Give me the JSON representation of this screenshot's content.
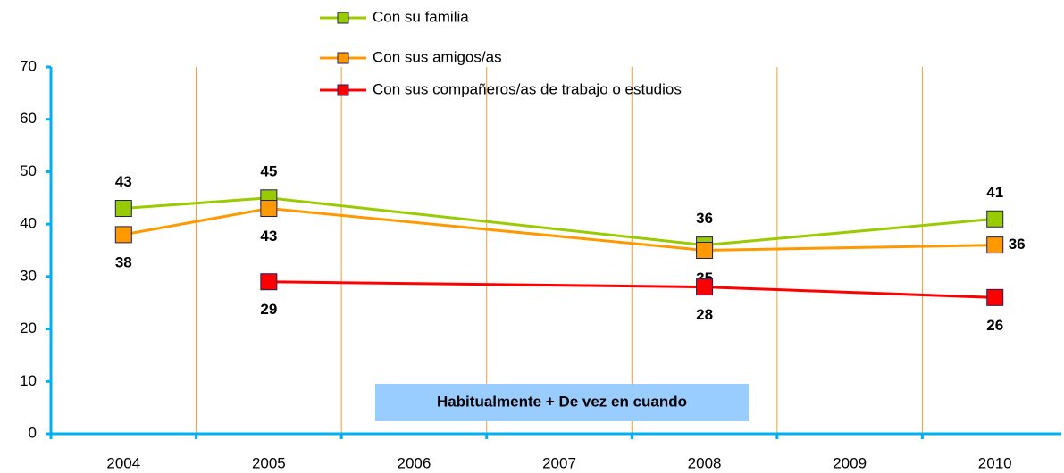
{
  "chart_data": {
    "type": "line",
    "xlim": [
      2003.5,
      2010.5
    ],
    "xticks": [
      2004,
      2005,
      2006,
      2007,
      2008,
      2009,
      2010
    ],
    "ylim": [
      0,
      70
    ],
    "yticks": [
      0,
      10,
      20,
      30,
      40,
      50,
      60,
      70
    ],
    "grid": true,
    "legend": "top",
    "annotation": "Habitualmente + De vez en cuando",
    "series": [
      {
        "name": "Con su familia",
        "color": "#99cc00",
        "x": [
          2004,
          2005,
          2008,
          2010
        ],
        "values": [
          43,
          45,
          36,
          41
        ]
      },
      {
        "name": "Con sus amigos/as",
        "color": "#ff9900",
        "x": [
          2004,
          2005,
          2008,
          2010
        ],
        "values": [
          38,
          43,
          35,
          36
        ]
      },
      {
        "name": "Con sus compañeros/as de trabajo o estudios",
        "color": "#ff0000",
        "x": [
          2005,
          2008,
          2010
        ],
        "values": [
          29,
          28,
          26
        ]
      }
    ]
  }
}
